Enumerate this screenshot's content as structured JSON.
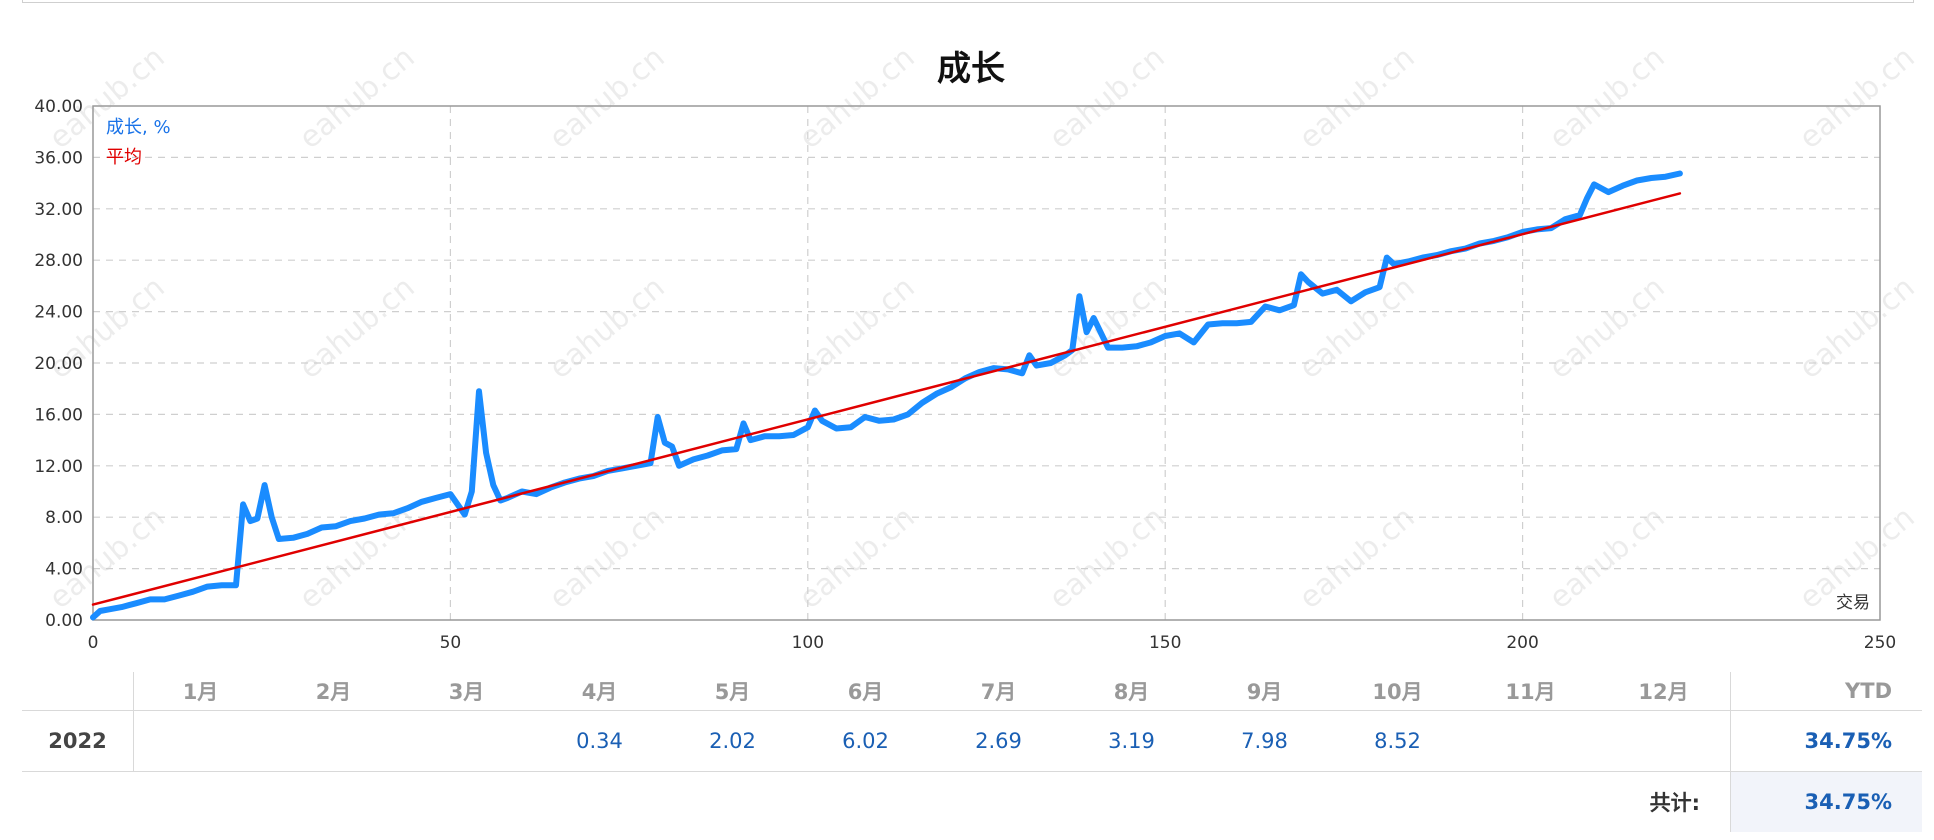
{
  "chart_data": {
    "type": "line",
    "title": "成长",
    "xlabel": "交易",
    "ylabel": "",
    "xlim": [
      0,
      250
    ],
    "ylim": [
      0,
      40
    ],
    "xticks": [
      "0",
      "50",
      "100",
      "150",
      "200",
      "250"
    ],
    "yticks": [
      "0.00",
      "4.00",
      "8.00",
      "12.00",
      "16.00",
      "20.00",
      "24.00",
      "28.00",
      "32.00",
      "36.00",
      "40.00"
    ],
    "grid": true,
    "legend_position": "top-left",
    "series": [
      {
        "name": "成长, %",
        "color": "#1a8cff",
        "x": [
          0,
          1,
          2,
          4,
          6,
          8,
          10,
          12,
          14,
          16,
          18,
          20,
          21,
          22,
          23,
          24,
          25,
          26,
          28,
          30,
          32,
          34,
          36,
          38,
          40,
          42,
          44,
          46,
          48,
          50,
          52,
          53,
          54,
          55,
          56,
          57,
          58,
          60,
          62,
          64,
          66,
          68,
          70,
          72,
          74,
          76,
          78,
          79,
          80,
          81,
          82,
          84,
          86,
          88,
          90,
          91,
          92,
          94,
          96,
          98,
          100,
          101,
          102,
          104,
          106,
          108,
          110,
          112,
          114,
          116,
          118,
          120,
          122,
          124,
          126,
          128,
          130,
          131,
          132,
          134,
          136,
          137,
          138,
          139,
          140,
          142,
          144,
          146,
          148,
          150,
          152,
          154,
          156,
          158,
          160,
          162,
          164,
          166,
          168,
          169,
          170,
          172,
          174,
          176,
          178,
          180,
          181,
          182,
          184,
          186,
          188,
          190,
          192,
          194,
          196,
          198,
          200,
          202,
          204,
          206,
          208,
          209,
          210,
          212,
          214,
          216,
          218,
          220,
          222
        ],
        "y": [
          0.2,
          0.7,
          0.8,
          1.0,
          1.3,
          1.6,
          1.6,
          1.9,
          2.2,
          2.6,
          2.7,
          2.7,
          9.0,
          7.7,
          7.9,
          10.5,
          8.0,
          6.3,
          6.4,
          6.7,
          7.2,
          7.3,
          7.7,
          7.9,
          8.2,
          8.3,
          8.7,
          9.2,
          9.5,
          9.8,
          8.2,
          10.0,
          17.8,
          13.0,
          10.5,
          9.3,
          9.5,
          10.0,
          9.8,
          10.3,
          10.7,
          11.0,
          11.2,
          11.6,
          11.8,
          12.0,
          12.2,
          15.8,
          13.8,
          13.5,
          12.0,
          12.5,
          12.8,
          13.2,
          13.3,
          15.3,
          14.0,
          14.3,
          14.3,
          14.4,
          15.0,
          16.3,
          15.5,
          14.9,
          15.0,
          15.8,
          15.5,
          15.6,
          16.0,
          16.9,
          17.6,
          18.1,
          18.8,
          19.3,
          19.6,
          19.5,
          19.2,
          20.6,
          19.8,
          20.0,
          20.6,
          21.0,
          25.2,
          22.4,
          23.5,
          21.2,
          21.2,
          21.3,
          21.6,
          22.1,
          22.3,
          21.6,
          23.0,
          23.1,
          23.1,
          23.2,
          24.4,
          24.1,
          24.5,
          26.9,
          26.3,
          25.4,
          25.7,
          24.8,
          25.5,
          25.9,
          28.2,
          27.7,
          27.9,
          28.2,
          28.4,
          28.7,
          28.9,
          29.3,
          29.5,
          29.8,
          30.2,
          30.4,
          30.5,
          31.2,
          31.5,
          32.8,
          33.9,
          33.3,
          33.8,
          34.2,
          34.4,
          34.5,
          34.75
        ]
      },
      {
        "name": "平均",
        "color": "#e00000",
        "x": [
          0,
          222
        ],
        "y": [
          1.2,
          33.2
        ]
      }
    ]
  },
  "table": {
    "months": [
      "1月",
      "2月",
      "3月",
      "4月",
      "5月",
      "6月",
      "7月",
      "8月",
      "9月",
      "10月",
      "11月",
      "12月"
    ],
    "ytd_header": "YTD",
    "year": "2022",
    "values": [
      "",
      "",
      "",
      "0.34",
      "2.02",
      "6.02",
      "2.69",
      "3.19",
      "7.98",
      "8.52",
      "",
      ""
    ],
    "ytd": "34.75%",
    "total_label": "共计:",
    "total_value": "34.75%"
  },
  "watermark": "eahub.cn"
}
